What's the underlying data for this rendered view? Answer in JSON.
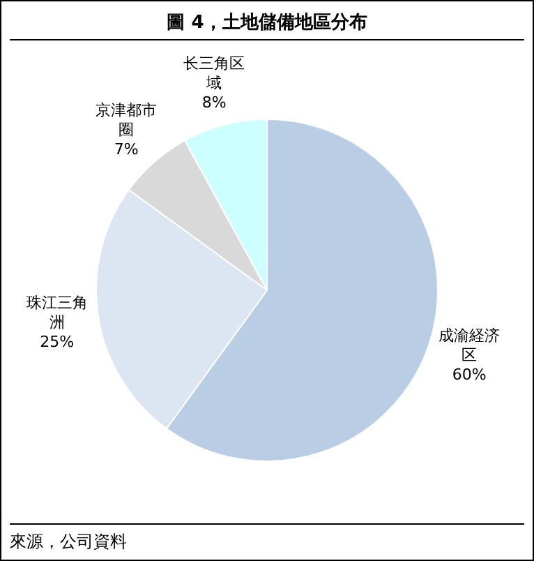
{
  "chart_data": {
    "type": "pie",
    "title": "圖 4，土地儲備地區分布",
    "categories": [
      "成渝経济区",
      "珠江三角洲",
      "京津都市圈",
      "长三角区域"
    ],
    "values": [
      60,
      25,
      7,
      8
    ],
    "value_labels": [
      "60%",
      "25%",
      "7%",
      "8%"
    ],
    "colors": [
      "#b9cde5",
      "#dce6f2",
      "#d9d9d9",
      "#ccffff"
    ],
    "annotations": [
      "來源，公司資料"
    ]
  }
}
